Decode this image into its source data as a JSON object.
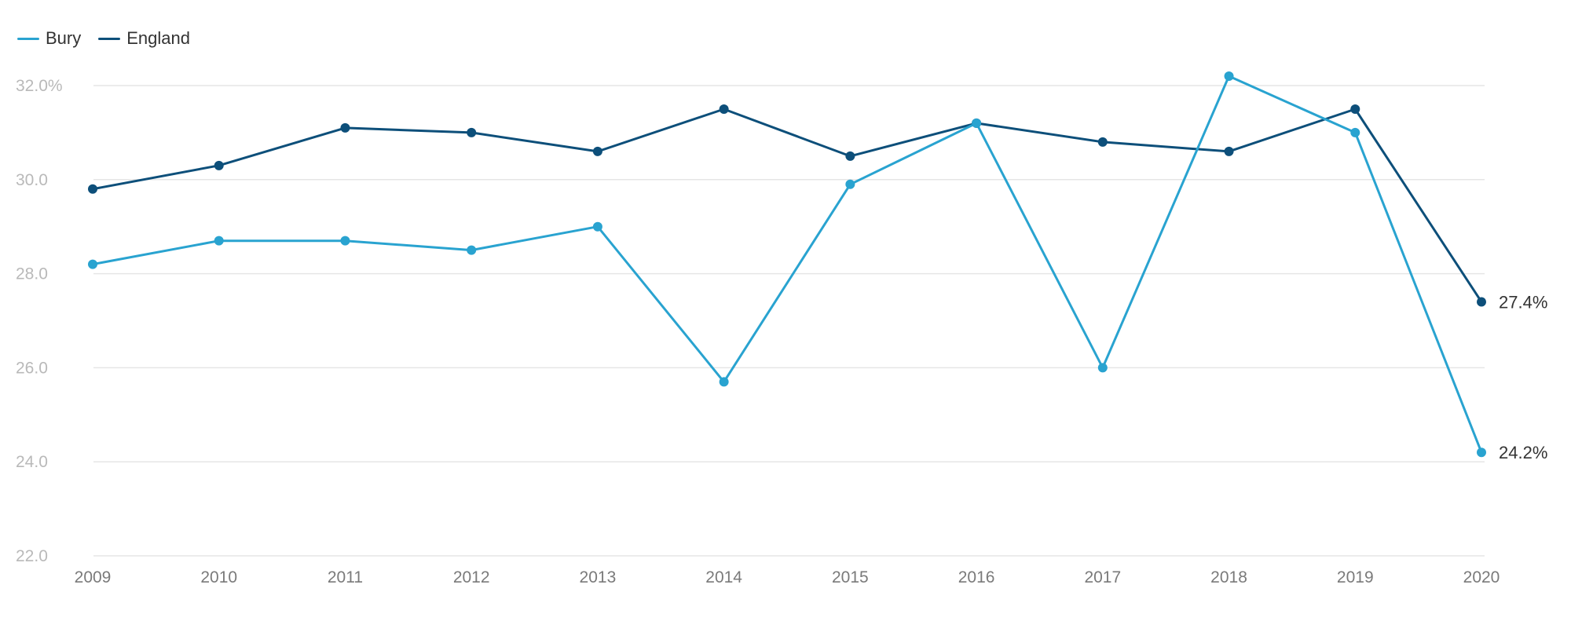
{
  "chart_data": {
    "type": "line",
    "categories": [
      "2009",
      "2010",
      "2011",
      "2012",
      "2013",
      "2014",
      "2015",
      "2016",
      "2017",
      "2018",
      "2019",
      "2020"
    ],
    "series": [
      {
        "name": "Bury",
        "color": "#29a3d0",
        "values": [
          28.2,
          28.7,
          28.7,
          28.5,
          29.0,
          25.7,
          29.9,
          31.2,
          26.0,
          32.2,
          31.0,
          24.2
        ],
        "end_label": "24.2%"
      },
      {
        "name": "England",
        "color": "#0d4f7a",
        "values": [
          29.8,
          30.3,
          31.1,
          31.0,
          30.6,
          31.5,
          30.5,
          31.2,
          30.8,
          30.6,
          31.5,
          27.4
        ],
        "end_label": "27.4%"
      }
    ],
    "ylim": [
      22.0,
      32.0
    ],
    "yticks": [
      {
        "value": 32.0,
        "label": "32.0%"
      },
      {
        "value": 30.0,
        "label": "30.0"
      },
      {
        "value": 28.0,
        "label": "28.0"
      },
      {
        "value": 26.0,
        "label": "26.0"
      },
      {
        "value": 24.0,
        "label": "24.0"
      },
      {
        "value": 22.0,
        "label": "22.0"
      }
    ],
    "grid": true,
    "legend_position": "top-left",
    "gridline_color": "#e6e6e6"
  }
}
